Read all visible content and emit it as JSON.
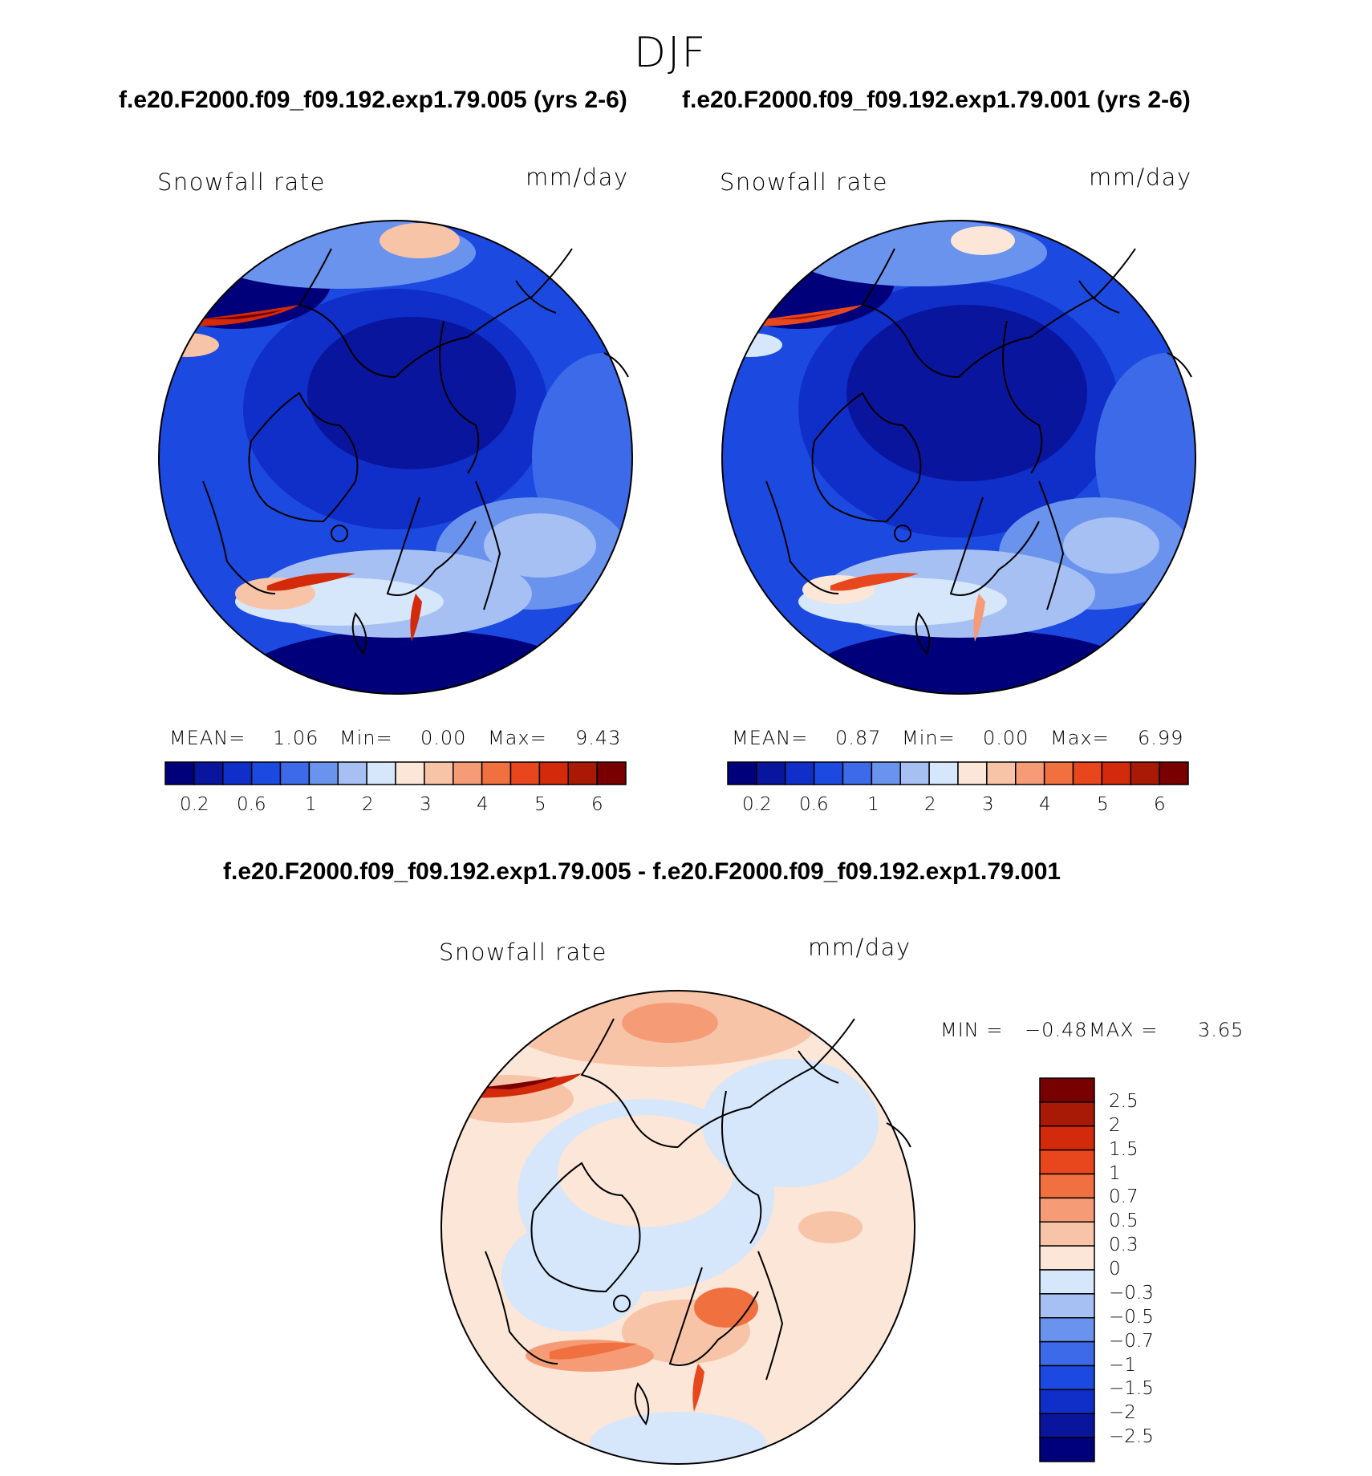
{
  "header": {
    "season": "DJF",
    "case_line_1": "f.e20.F2000.f09_f09.192.exp1.79.005 (yrs 2-6)",
    "case_line_2": "f.e20.F2000.f09_f09.192.exp1.79.001 (yrs 2-6)",
    "diff_title": "f.e20.F2000.f09_f09.192.exp1.79.005 - f.e20.F2000.f09_f09.192.exp1.79.001"
  },
  "colors": {
    "abs_scale": [
      "#00007a",
      "#0a159e",
      "#0f2fc8",
      "#1c4ae0",
      "#3c6ae8",
      "#6a93ee",
      "#a6c0f4",
      "#d6e6fb",
      "#fbe6d8",
      "#f8c4a8",
      "#f59b76",
      "#f0703f",
      "#e8471d",
      "#d22a0a",
      "#a81a05",
      "#780000"
    ],
    "diff_scale": [
      "#780000",
      "#a81a05",
      "#d22a0a",
      "#e8471d",
      "#f0703f",
      "#f59b76",
      "#f8c4a8",
      "#fbe6d8",
      "#d6e6fb",
      "#a6c0f4",
      "#6a93ee",
      "#3c6ae8",
      "#1c4ae0",
      "#0f2fc8",
      "#0a159e",
      "#00007a"
    ]
  },
  "chart_data": [
    {
      "type": "heatmap",
      "title": "Snowfall rate",
      "units": "mm/day",
      "case": "f.e20.F2000.f09_f09.192.exp1.79.005 (yrs 2-6)",
      "projection": "polar stereographic (north)",
      "stats": {
        "mean_label": "MEAN=",
        "mean": "1.06",
        "min_label": "Min=",
        "min": "0.00",
        "max_label": "Max=",
        "max": "9.43"
      },
      "colorbar_ticks": [
        "0.2",
        "0.6",
        "1",
        "2",
        "3",
        "4",
        "5",
        "6"
      ]
    },
    {
      "type": "heatmap",
      "title": "Snowfall rate",
      "units": "mm/day",
      "case": "f.e20.F2000.f09_f09.192.exp1.79.001 (yrs 2-6)",
      "projection": "polar stereographic (north)",
      "stats": {
        "mean_label": "MEAN=",
        "mean": "0.87",
        "min_label": "Min=",
        "min": "0.00",
        "max_label": "Max=",
        "max": "6.99"
      },
      "colorbar_ticks": [
        "0.2",
        "0.6",
        "1",
        "2",
        "3",
        "4",
        "5",
        "6"
      ]
    },
    {
      "type": "heatmap",
      "title": "Snowfall rate",
      "units": "mm/day",
      "case": "f.e20.F2000.f09_f09.192.exp1.79.005 - f.e20.F2000.f09_f09.192.exp1.79.001",
      "projection": "polar stereographic (north)",
      "stats": {
        "min_label": "MIN =",
        "min": "−0.48",
        "max_label": "MAX =",
        "max": "3.65"
      },
      "colorbar_ticks": [
        "2.5",
        "2",
        "1.5",
        "1",
        "0.7",
        "0.5",
        "0.3",
        "0",
        "−0.3",
        "−0.5",
        "−0.7",
        "−1",
        "−1.5",
        "−2",
        "−2.5"
      ]
    }
  ]
}
